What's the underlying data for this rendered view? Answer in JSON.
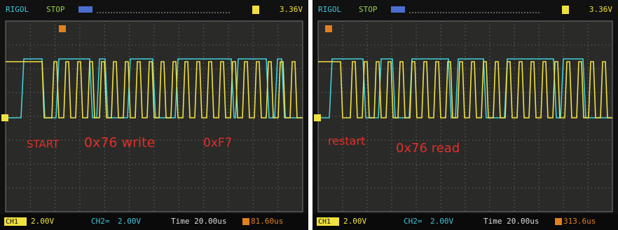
{
  "screens": [
    {
      "header": {
        "brand": "RIGOL",
        "status": "STOP",
        "trigger_level": "3.36V"
      },
      "annotations": [
        "START",
        "0x76 write",
        "0xF7"
      ],
      "footer": {
        "ch1_label": "CH1",
        "ch1_scale": "2.00V",
        "ch2_label": "CH2=",
        "ch2_scale": "2.00V",
        "timebase": "Time 20.00us",
        "trigger_offset": "81.60us"
      }
    },
    {
      "header": {
        "brand": "RIGOL",
        "status": "STOP",
        "trigger_level": "3.36V"
      },
      "annotations": [
        "restart",
        "0x76 read"
      ],
      "footer": {
        "ch1_label": "CH1",
        "ch1_scale": "2.00V",
        "ch2_label": "CH2=",
        "ch2_scale": "2.00V",
        "timebase": "Time 20.00us",
        "trigger_offset": "313.6us"
      }
    }
  ]
}
